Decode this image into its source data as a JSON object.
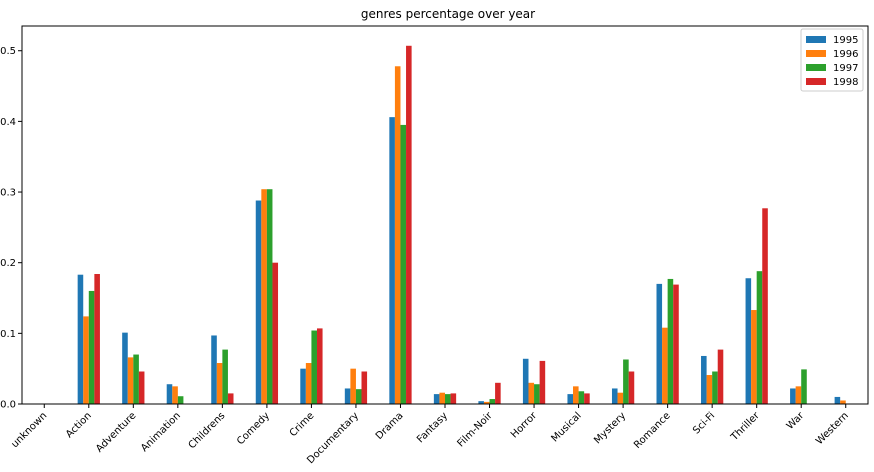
{
  "chart_data": {
    "type": "bar",
    "title": "genres percentage over year",
    "xlabel": "",
    "ylabel": "",
    "ylim": [
      0,
      0.535
    ],
    "yticks": [
      "0.0",
      "0.1",
      "0.2",
      "0.3",
      "0.4",
      "0.5"
    ],
    "grid": false,
    "legend_position": "top-right",
    "categories": [
      "unknown",
      "Action",
      "Adventure",
      "Animation",
      "Childrens",
      "Comedy",
      "Crime",
      "Documentary",
      "Drama",
      "Fantasy",
      "Film-Noir",
      "Horror",
      "Musical",
      "Mystery",
      "Romance",
      "Sci-Fi",
      "Thriller",
      "War",
      "Western"
    ],
    "series": [
      {
        "name": "1995",
        "color": "#1f77b4",
        "values": [
          0.0,
          0.183,
          0.101,
          0.028,
          0.097,
          0.288,
          0.05,
          0.022,
          0.406,
          0.014,
          0.004,
          0.064,
          0.014,
          0.022,
          0.17,
          0.068,
          0.178,
          0.022,
          0.01
        ]
      },
      {
        "name": "1996",
        "color": "#ff7f0e",
        "values": [
          0.0,
          0.124,
          0.066,
          0.025,
          0.058,
          0.304,
          0.058,
          0.05,
          0.478,
          0.016,
          0.003,
          0.03,
          0.025,
          0.016,
          0.108,
          0.041,
          0.133,
          0.025,
          0.005
        ]
      },
      {
        "name": "1997",
        "color": "#2ca02c",
        "values": [
          0.0,
          0.16,
          0.07,
          0.011,
          0.077,
          0.304,
          0.104,
          0.021,
          0.395,
          0.014,
          0.007,
          0.028,
          0.018,
          0.063,
          0.177,
          0.046,
          0.188,
          0.049,
          0.0
        ]
      },
      {
        "name": "1998",
        "color": "#d62728",
        "values": [
          0.0,
          0.184,
          0.046,
          0.0,
          0.015,
          0.2,
          0.107,
          0.046,
          0.507,
          0.015,
          0.03,
          0.061,
          0.015,
          0.046,
          0.169,
          0.077,
          0.277,
          0.0,
          0.0
        ]
      }
    ]
  }
}
